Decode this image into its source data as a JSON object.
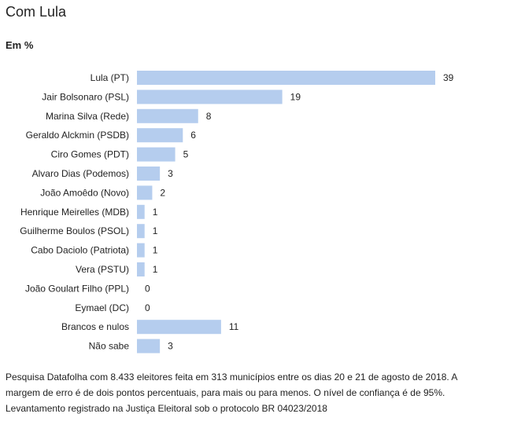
{
  "title": "Com Lula",
  "subtitle": "Em %",
  "note": "Pesquisa Datafolha com 8.433 eleitores feita em 313 municípios entre os dias 20 e 21 de agosto de 2018. A margem de erro é de dois pontos percentuais, para mais ou para menos. O nível de confiança é de 95%. Levantamento registrado na Justiça Eleitoral sob o protocolo BR 04023/2018",
  "colors": {
    "bar": "#b5cdee",
    "text": "#222222"
  },
  "chart_data": {
    "type": "bar",
    "orientation": "horizontal",
    "title": "Com Lula",
    "subtitle": "Em %",
    "categories": [
      "Lula (PT)",
      "Jair Bolsonaro (PSL)",
      "Marina Silva (Rede)",
      "Geraldo Alckmin (PSDB)",
      "Ciro Gomes (PDT)",
      "Alvaro Dias (Podemos)",
      "João Amoêdo (Novo)",
      "Henrique Meirelles (MDB)",
      "Guilherme Boulos (PSOL)",
      "Cabo Daciolo (Patriota)",
      "Vera (PSTU)",
      "João Goulart Filho (PPL)",
      "Eymael (DC)",
      "Brancos e nulos",
      "Não sabe"
    ],
    "values": [
      39,
      19,
      8,
      6,
      5,
      3,
      2,
      1,
      1,
      1,
      1,
      0,
      0,
      11,
      3
    ],
    "xlim": [
      0,
      39
    ],
    "grid": false,
    "legend": "none"
  }
}
